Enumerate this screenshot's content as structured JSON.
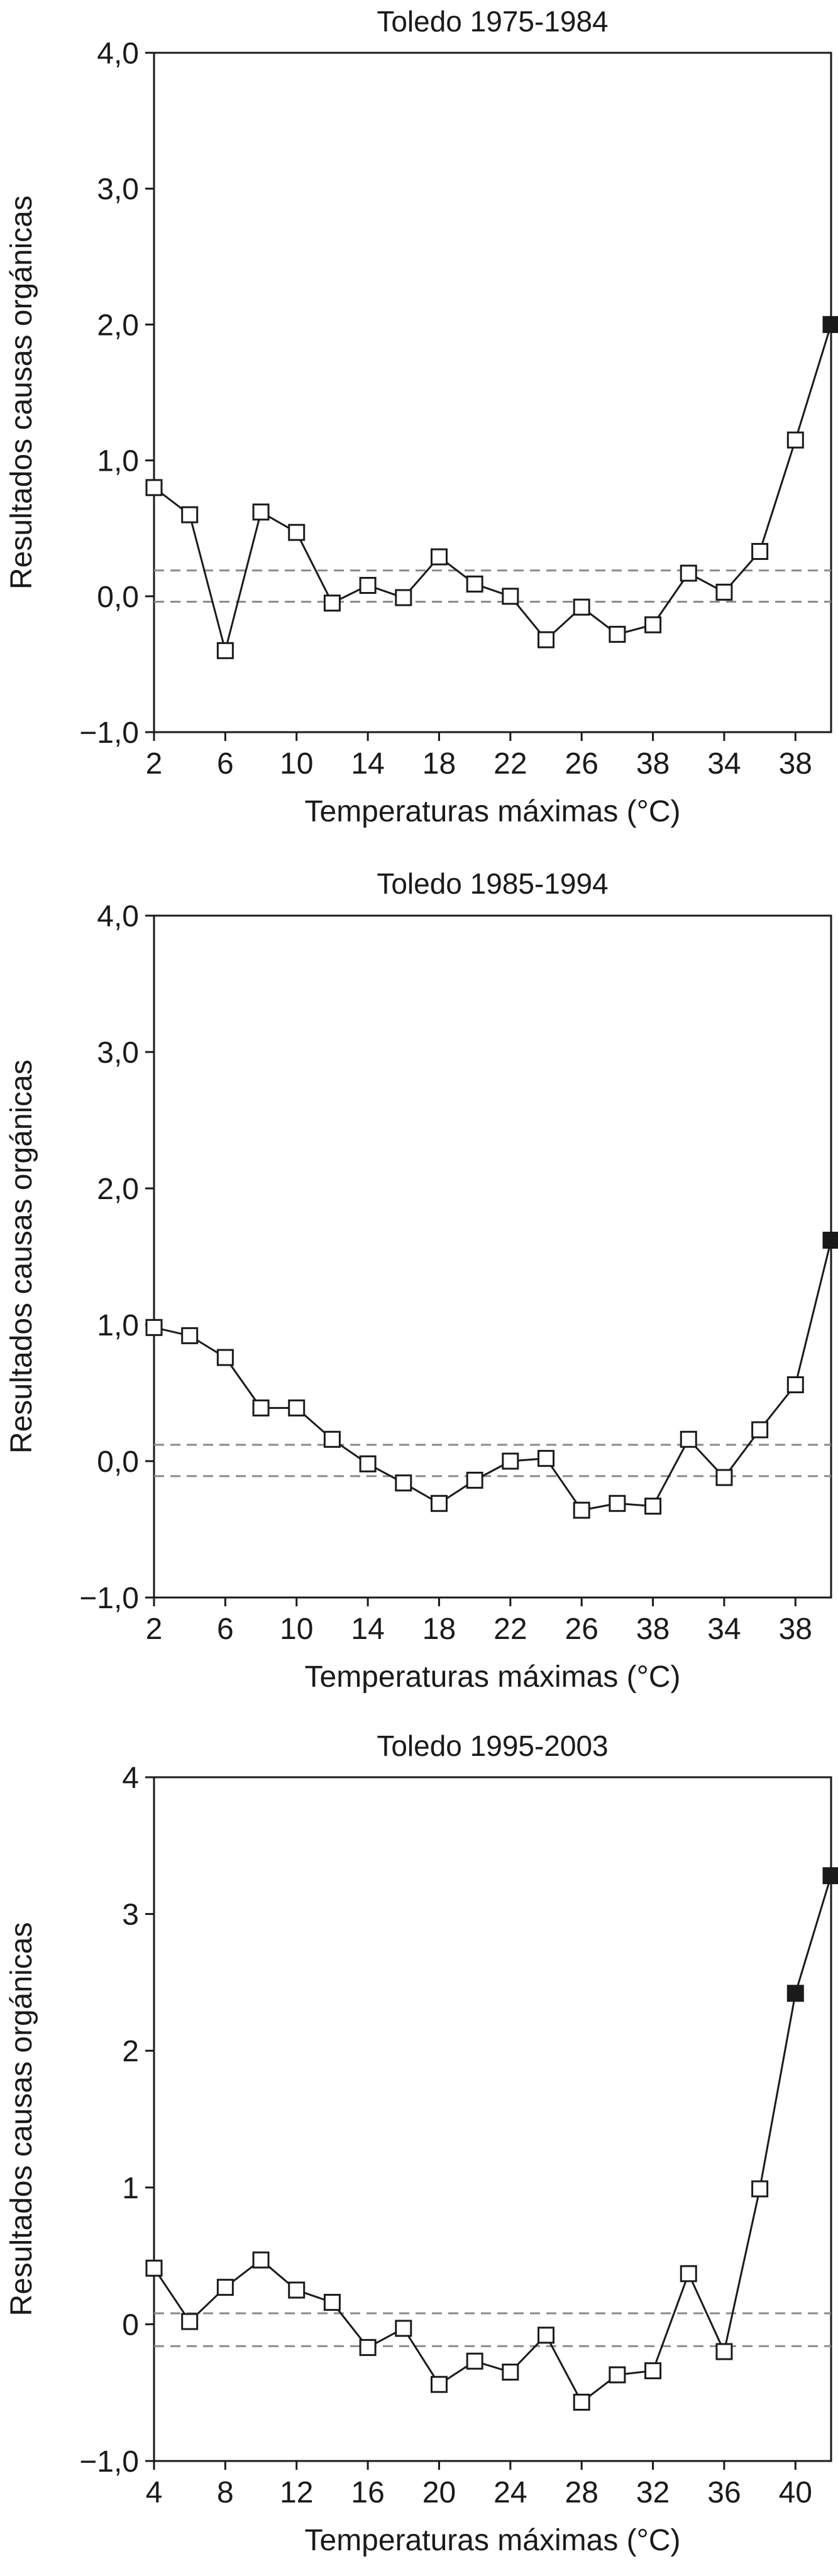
{
  "chart_data": [
    {
      "type": "line",
      "title": "Toledo 1975-1984",
      "xlabel": "Temperaturas máximas (°C)",
      "ylabel": "Resultados causas orgánicas",
      "ylim": [
        -1,
        4
      ],
      "yticks": [
        "4,0",
        "3,0",
        "2,0",
        "1,0",
        "0,0",
        "−1,0"
      ],
      "ytick_values": [
        4,
        3,
        2,
        1,
        0,
        -1
      ],
      "x": [
        2,
        4,
        6,
        8,
        10,
        12,
        14,
        16,
        18,
        20,
        22,
        24,
        26,
        27,
        38,
        31,
        34,
        36,
        38,
        40
      ],
      "xticks": [
        "2",
        "6",
        "10",
        "14",
        "18",
        "22",
        "26",
        "38",
        "34",
        "38"
      ],
      "series": [
        {
          "values": [
            0.8,
            0.6,
            -0.4,
            0.62,
            0.47,
            -0.05,
            0.08,
            -0.01,
            0.29,
            0.09,
            0.0,
            -0.32,
            -0.08,
            -0.28,
            -0.21,
            0.17,
            0.03,
            0.33,
            1.15,
            2.0
          ],
          "filled": [
            false,
            false,
            false,
            false,
            false,
            false,
            false,
            false,
            false,
            false,
            false,
            false,
            false,
            false,
            false,
            false,
            false,
            false,
            false,
            true
          ]
        }
      ],
      "reference_lines": [
        0.19,
        -0.04
      ],
      "grid": false
    },
    {
      "type": "line",
      "title": "Toledo 1985-1994",
      "xlabel": "Temperaturas máximas (°C)",
      "ylabel": "Resultados causas orgánicas",
      "ylim": [
        -1,
        4
      ],
      "yticks": [
        "4,0",
        "3,0",
        "2,0",
        "1,0",
        "0,0",
        "−1,0"
      ],
      "ytick_values": [
        4,
        3,
        2,
        1,
        0,
        -1
      ],
      "x": [
        2,
        4,
        6,
        8,
        10,
        12,
        14,
        16,
        18,
        20,
        22,
        24,
        26,
        27,
        38,
        31,
        34,
        36,
        38,
        40
      ],
      "xticks": [
        "2",
        "6",
        "10",
        "14",
        "18",
        "22",
        "26",
        "38",
        "34",
        "38"
      ],
      "series": [
        {
          "values": [
            0.98,
            0.92,
            0.76,
            0.39,
            0.39,
            0.16,
            -0.02,
            -0.16,
            -0.31,
            -0.14,
            0.0,
            0.02,
            -0.36,
            -0.31,
            -0.33,
            0.16,
            -0.12,
            0.23,
            0.56,
            1.62
          ],
          "filled": [
            false,
            false,
            false,
            false,
            false,
            false,
            false,
            false,
            false,
            false,
            false,
            false,
            false,
            false,
            false,
            false,
            false,
            false,
            false,
            true
          ]
        }
      ],
      "reference_lines": [
        0.12,
        -0.11
      ],
      "grid": false
    },
    {
      "type": "line",
      "title": "Toledo 1995-2003",
      "xlabel": "Temperaturas máximas (°C)",
      "ylabel": "Resultados causas orgánicas",
      "ylim": [
        -1,
        4
      ],
      "yticks": [
        "4",
        "3",
        "2",
        "1",
        "0",
        "−1,0"
      ],
      "ytick_values": [
        4,
        3,
        2,
        1,
        0,
        -1
      ],
      "x": [
        4,
        6,
        8,
        10,
        12,
        14,
        16,
        18,
        20,
        22,
        24,
        26,
        28,
        30,
        32,
        34,
        36,
        38,
        40,
        42
      ],
      "xticks": [
        "4",
        "8",
        "12",
        "16",
        "20",
        "24",
        "28",
        "32",
        "36",
        "40"
      ],
      "series": [
        {
          "values": [
            0.41,
            0.02,
            0.27,
            0.47,
            0.25,
            0.16,
            -0.17,
            -0.03,
            -0.44,
            -0.27,
            -0.35,
            -0.08,
            -0.57,
            -0.37,
            -0.34,
            0.37,
            -0.2,
            0.99,
            2.42,
            3.28
          ],
          "filled": [
            false,
            false,
            false,
            false,
            false,
            false,
            false,
            false,
            false,
            false,
            false,
            false,
            false,
            false,
            false,
            false,
            false,
            false,
            true,
            true
          ]
        }
      ],
      "reference_lines": [
        0.08,
        -0.16
      ],
      "grid": false
    }
  ]
}
